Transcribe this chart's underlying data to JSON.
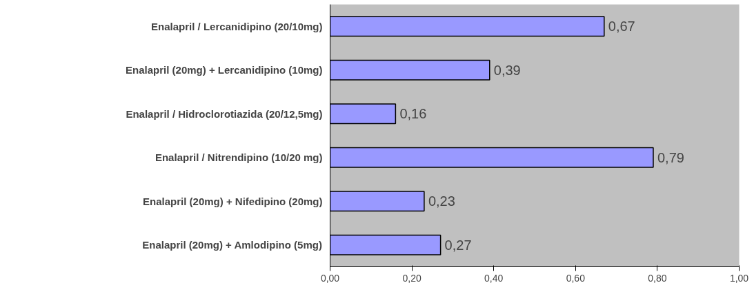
{
  "chart_data": {
    "type": "bar",
    "orientation": "horizontal",
    "categories": [
      "Enalapril / Lercanidipino (20/10mg)",
      "Enalapril (20mg) + Lercanidipino (10mg)",
      "Enalapril / Hidroclorotiazida (20/12,5mg)",
      "Enalapril / Nitrendipino (10/20 mg)",
      "Enalapril (20mg) + Nifedipino (20mg)",
      "Enalapril (20mg) + Amlodipino (5mg)"
    ],
    "values": [
      0.67,
      0.39,
      0.16,
      0.79,
      0.23,
      0.27
    ],
    "value_labels": [
      "0,67",
      "0,39",
      "0,16",
      "0,79",
      "0,23",
      "0,27"
    ],
    "color": "#9999ff",
    "xlim": [
      0,
      1
    ],
    "xticks": [
      {
        "value": 0,
        "label": "0,00"
      },
      {
        "value": 0.2,
        "label": "0,20"
      },
      {
        "value": 0.4,
        "label": "0,40"
      },
      {
        "value": 0.6,
        "label": "0,60"
      },
      {
        "value": 0.8,
        "label": "0,80"
      },
      {
        "value": 1,
        "label": "1,00"
      }
    ],
    "grid": false
  }
}
